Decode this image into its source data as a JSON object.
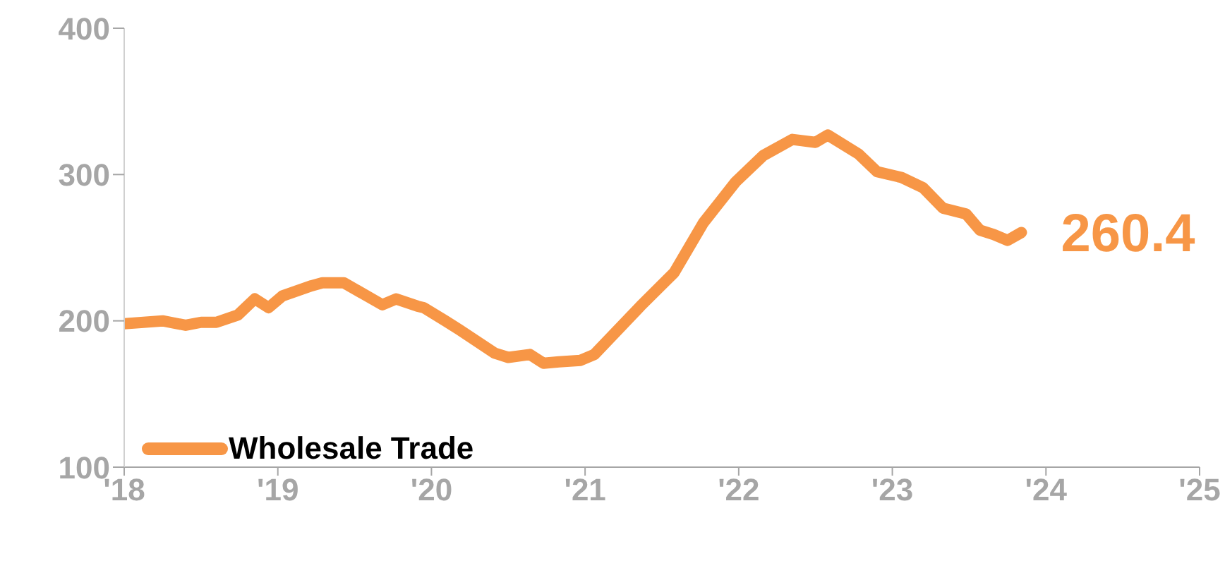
{
  "chart_data": {
    "type": "line",
    "xlim": [
      2018,
      2025
    ],
    "ylim": [
      100,
      400
    ],
    "yticks": [
      100,
      200,
      300,
      400
    ],
    "xticks": [
      {
        "value": 2018,
        "label": "'18"
      },
      {
        "value": 2019,
        "label": "'19"
      },
      {
        "value": 2020,
        "label": "'20"
      },
      {
        "value": 2021,
        "label": "'21"
      },
      {
        "value": 2022,
        "label": "'22"
      },
      {
        "value": 2023,
        "label": "'23"
      },
      {
        "value": 2024,
        "label": "'24"
      },
      {
        "value": 2025,
        "label": "'25"
      }
    ],
    "x": [
      2018.0,
      2018.25,
      2018.4,
      2018.5,
      2018.6,
      2018.74,
      2018.85,
      2018.94,
      2019.03,
      2019.22,
      2019.29,
      2019.43,
      2019.68,
      2019.77,
      2019.91,
      2019.95,
      2020.09,
      2020.18,
      2020.41,
      2020.5,
      2020.64,
      2020.73,
      2020.83,
      2020.97,
      2021.06,
      2021.36,
      2021.58,
      2021.77,
      2021.98,
      2022.16,
      2022.35,
      2022.5,
      2022.58,
      2022.78,
      2022.9,
      2023.06,
      2023.2,
      2023.33,
      2023.48,
      2023.57,
      2023.66,
      2023.75,
      2023.84
    ],
    "series": [
      {
        "name": "Wholesale Trade",
        "color": "#f79646",
        "values": [
          198,
          200,
          197,
          199,
          199,
          204,
          215,
          209,
          217,
          224,
          226,
          226,
          211,
          215,
          210,
          209,
          200,
          194,
          178,
          175,
          177,
          171,
          172,
          173,
          177,
          210,
          233,
          267,
          295,
          313,
          324,
          322,
          327,
          314,
          302,
          298,
          291,
          277,
          273,
          262,
          259,
          255,
          260.4
        ]
      }
    ],
    "annotations": [
      {
        "text": "260.4",
        "x": 2023.84,
        "y": 260.4
      }
    ],
    "legend": "bottom left",
    "grid": false,
    "line_style": "solid",
    "marker": "none"
  }
}
